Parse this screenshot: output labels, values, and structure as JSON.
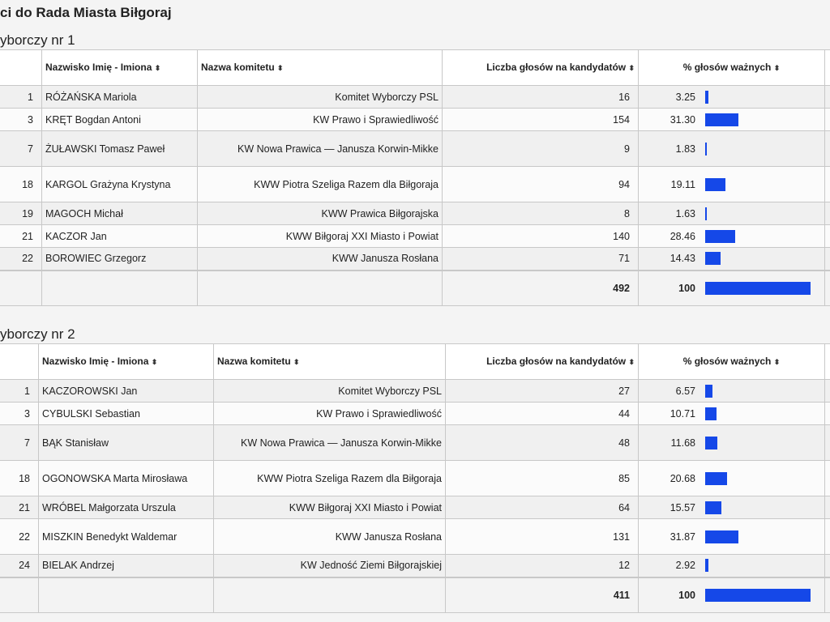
{
  "page_title": "ci do Rada Miasta Biłgoraj",
  "districts": [
    {
      "label": "yborczy nr 1",
      "headers": {
        "name": "Nazwisko Imię - Imiona",
        "committee": "Nazwa komitetu",
        "votes": "Liczba głosów na kandydatów",
        "pct": "% głosów ważnych"
      },
      "rows": [
        {
          "no": "1",
          "name": "RÓŻAŃSKA Mariola",
          "committee": "Komitet Wyborczy PSL",
          "votes": "16",
          "pct": "3.25"
        },
        {
          "no": "3",
          "name": "KRĘT Bogdan Antoni",
          "committee": "KW Prawo i Sprawiedliwość",
          "votes": "154",
          "pct": "31.30"
        },
        {
          "no": "7",
          "name": "ŻUŁAWSKI Tomasz Paweł",
          "committee": "KW Nowa Prawica — Janusza Korwin-Mikke",
          "votes": "9",
          "pct": "1.83"
        },
        {
          "no": "18",
          "name": "KARGOL Grażyna Krystyna",
          "committee": "KWW Piotra Szeliga Razem dla Biłgoraja",
          "votes": "94",
          "pct": "19.11"
        },
        {
          "no": "19",
          "name": "MAGOCH Michał",
          "committee": "KWW Prawica Biłgorajska",
          "votes": "8",
          "pct": "1.63"
        },
        {
          "no": "21",
          "name": "KACZOR Jan",
          "committee": "KWW Biłgoraj XXI Miasto i Powiat",
          "votes": "140",
          "pct": "28.46"
        },
        {
          "no": "22",
          "name": "BOROWIEC Grzegorz",
          "committee": "KWW Janusza Rosłana",
          "votes": "71",
          "pct": "14.43"
        }
      ],
      "total_votes": "492",
      "total_pct": "100"
    },
    {
      "label": "yborczy nr 2",
      "headers": {
        "name": "Nazwisko Imię - Imiona",
        "committee": "Nazwa komitetu",
        "votes": "Liczba głosów na kandydatów",
        "pct": "% głosów ważnych"
      },
      "rows": [
        {
          "no": "1",
          "name": "KACZOROWSKI Jan",
          "committee": "Komitet Wyborczy PSL",
          "votes": "27",
          "pct": "6.57"
        },
        {
          "no": "3",
          "name": "CYBULSKI Sebastian",
          "committee": "KW Prawo i Sprawiedliwość",
          "votes": "44",
          "pct": "10.71"
        },
        {
          "no": "7",
          "name": "BĄK Stanisław",
          "committee": "KW Nowa Prawica — Janusza Korwin-Mikke",
          "votes": "48",
          "pct": "11.68"
        },
        {
          "no": "18",
          "name": "OGONOWSKA Marta Mirosława",
          "committee": "KWW Piotra Szeliga Razem dla Biłgoraja",
          "votes": "85",
          "pct": "20.68"
        },
        {
          "no": "21",
          "name": "WRÓBEL Małgorzata Urszula",
          "committee": "KWW Biłgoraj XXI Miasto i Powiat",
          "votes": "64",
          "pct": "15.57"
        },
        {
          "no": "22",
          "name": "MISZKIN Benedykt Waldemar",
          "committee": "KWW Janusza Rosłana",
          "votes": "131",
          "pct": "31.87"
        },
        {
          "no": "24",
          "name": "BIELAK Andrzej",
          "committee": "KW Jedność Ziemi Biłgorajskiej",
          "votes": "12",
          "pct": "2.92"
        }
      ],
      "total_votes": "411",
      "total_pct": "100"
    }
  ],
  "bar_color": "#1548e8",
  "sort_icon": "sort-updown-icon"
}
